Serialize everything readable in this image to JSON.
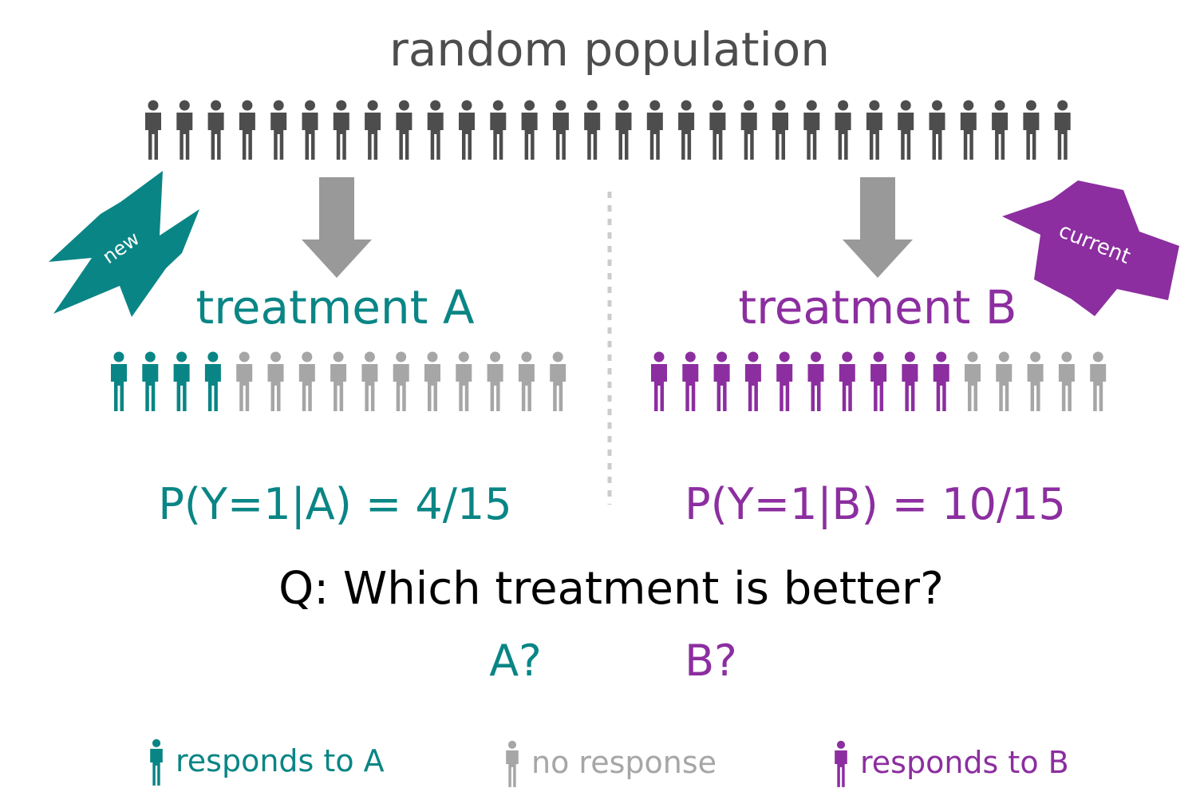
{
  "colors": {
    "teal": "#0a8585",
    "purple": "#8c2ea0",
    "gray": "#a6a6a6",
    "dark": "#4d4d4d",
    "arrow": "#999999",
    "text": "#000000"
  },
  "icons": {
    "person": "person-icon",
    "arrow": "down-arrow-icon",
    "badge": "star-badge-icon"
  },
  "title": "random population",
  "population_count": 30,
  "badges": {
    "new_label": "new",
    "current_label": "current"
  },
  "treatment_a": {
    "label": "treatment A",
    "responders": 4,
    "total": 15,
    "formula": "P(Y=1|A) = 4/15"
  },
  "treatment_b": {
    "label": "treatment B",
    "responders": 10,
    "total": 15,
    "formula": "P(Y=1|B) = 10/15"
  },
  "question": "Q: Which treatment is better?",
  "answers": {
    "a": "A?",
    "b": "B?"
  },
  "legend": {
    "responds_a": "responds to A",
    "no_response": "no response",
    "responds_b": "responds to B"
  }
}
